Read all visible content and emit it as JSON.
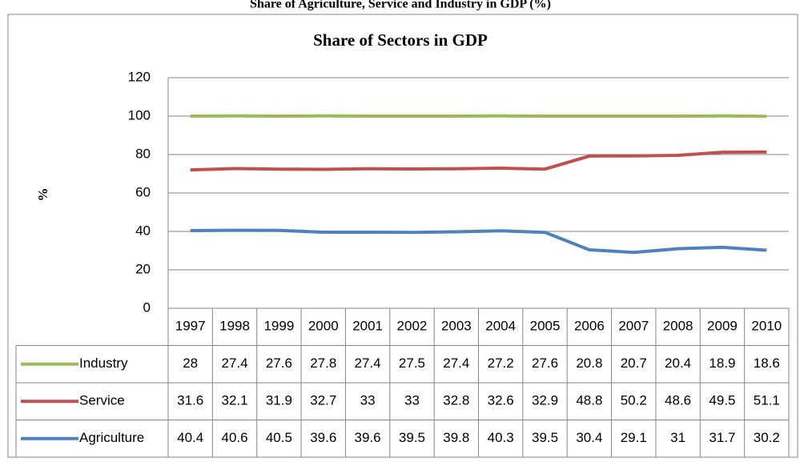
{
  "chart_data": {
    "type": "stacked_line",
    "caption": "Share of Agriculture, Service and Industry in GDP (%)",
    "title": "Share of Sectors in GDP",
    "y_label": "%",
    "categories": [
      "1997",
      "1998",
      "1999",
      "2000",
      "2001",
      "2002",
      "2003",
      "2004",
      "2005",
      "2006",
      "2007",
      "2008",
      "2009",
      "2010"
    ],
    "series": [
      {
        "name": "Industry",
        "color": "#9bbb59",
        "values": [
          28,
          27.4,
          27.6,
          27.8,
          27.4,
          27.5,
          27.4,
          27.2,
          27.6,
          20.8,
          20.7,
          20.4,
          18.9,
          18.6
        ]
      },
      {
        "name": "Service",
        "color": "#c0504d",
        "values": [
          31.6,
          32.1,
          31.9,
          32.7,
          33,
          33,
          32.8,
          32.6,
          32.9,
          48.8,
          50.2,
          48.6,
          49.5,
          51.1
        ]
      },
      {
        "name": "Agriculture",
        "color": "#4f81bd",
        "values": [
          40.4,
          40.6,
          40.5,
          39.6,
          39.6,
          39.5,
          39.8,
          40.3,
          39.5,
          30.4,
          29.1,
          31,
          31.7,
          30.2
        ]
      }
    ],
    "ylim": [
      0,
      120
    ],
    "yticks": [
      0,
      20,
      40,
      60,
      80,
      100,
      120
    ],
    "grid": true
  }
}
